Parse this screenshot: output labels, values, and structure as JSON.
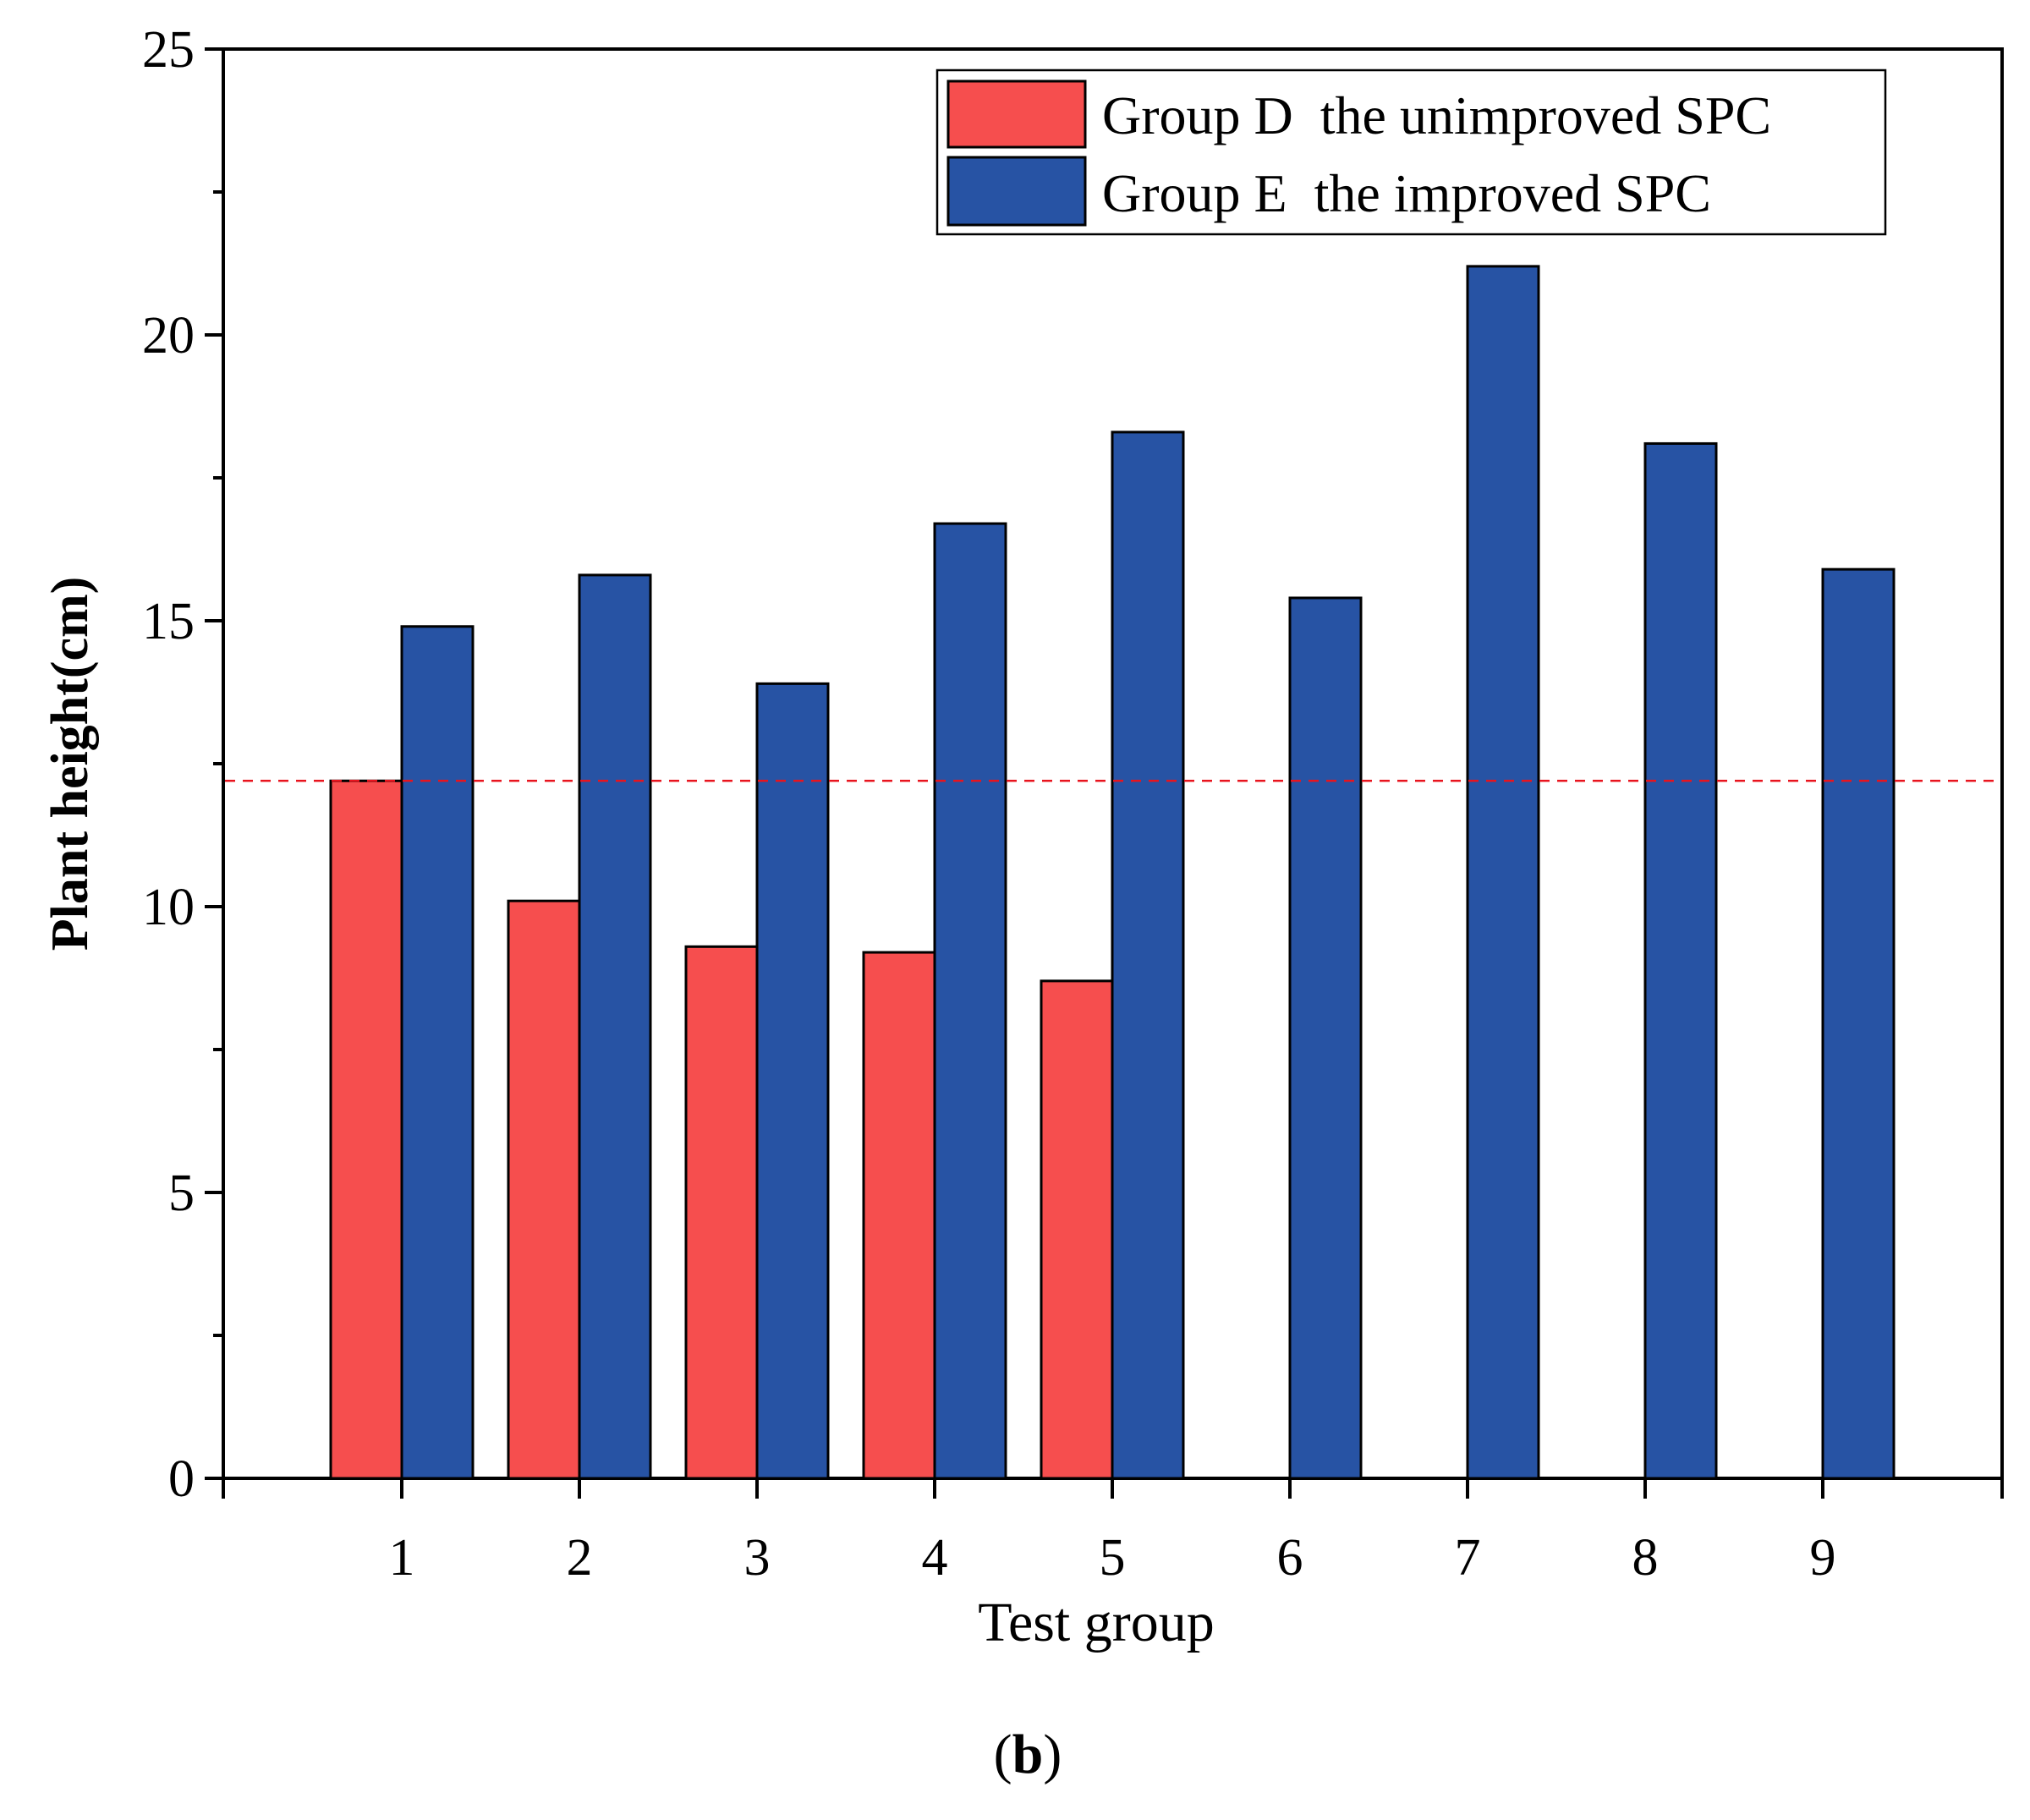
{
  "chart_data": {
    "type": "bar",
    "title": "",
    "xlabel": "Test group",
    "ylabel": "Plant height(cm)",
    "categories": [
      "1",
      "2",
      "3",
      "4",
      "5",
      "6",
      "7",
      "8",
      "9"
    ],
    "ylim": [
      0,
      25
    ],
    "yticks": [
      0,
      5,
      10,
      15,
      20,
      25
    ],
    "yticks_labels": [
      "0",
      "5",
      "10",
      "15",
      "20",
      "25"
    ],
    "grid": false,
    "series": [
      {
        "name": "Group D  the unimproved SPC",
        "color": "#f64e4e",
        "values": [
          12.2,
          10.1,
          9.3,
          9.2,
          8.7,
          null,
          null,
          null,
          null
        ]
      },
      {
        "name": "Group E  the improved SPC",
        "color": "#2753a4",
        "values": [
          14.9,
          15.8,
          13.9,
          16.7,
          18.3,
          15.4,
          21.2,
          18.1,
          15.9
        ]
      }
    ],
    "reference_line": {
      "value": 12.2,
      "style": "dashed",
      "color": "#e8141e"
    },
    "legend_position": "top-right",
    "caption": {
      "open": "(",
      "label": "b",
      "close": ")"
    }
  }
}
